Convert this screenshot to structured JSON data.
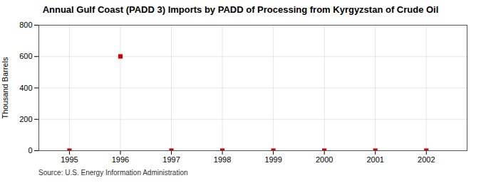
{
  "chart_data": {
    "type": "scatter",
    "title": "Annual Gulf Coast (PADD 3) Imports by PADD of Processing from Kyrgyzstan of Crude Oil",
    "ylabel": "Thousand Barrels",
    "source": "Source: U.S. Energy Information Administration",
    "x": [
      1995,
      1996,
      1997,
      1998,
      1999,
      2000,
      2001,
      2002
    ],
    "values": [
      0,
      601,
      0,
      0,
      0,
      0,
      0,
      0
    ],
    "color": "#cc0000",
    "marker": "square",
    "xlim": [
      1994.4,
      2002.8
    ],
    "xticks": [
      1995,
      1996,
      1997,
      1998,
      1999,
      2000,
      2001,
      2002
    ],
    "ylim": [
      0,
      800
    ],
    "yticks": [
      0,
      200,
      400,
      600,
      800
    ],
    "grid": true
  }
}
